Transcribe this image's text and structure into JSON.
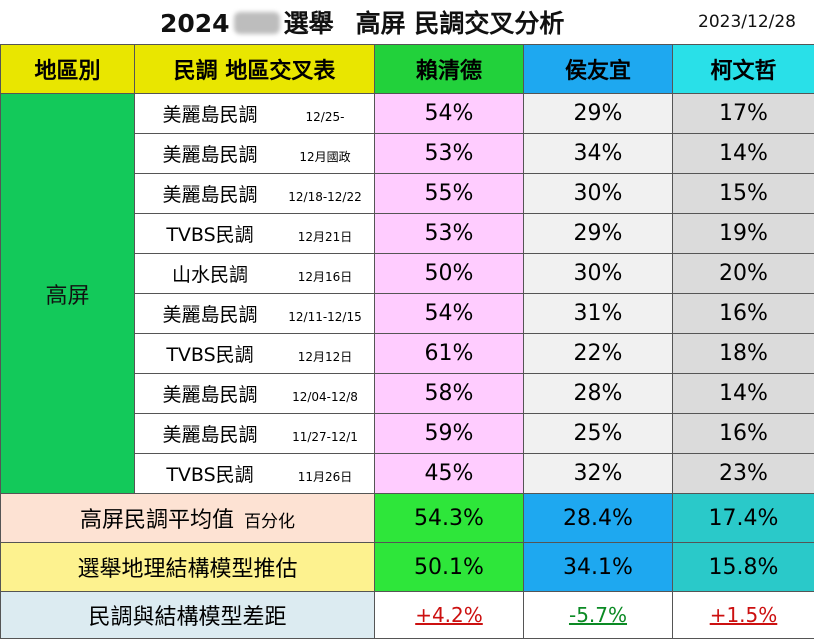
{
  "title": {
    "year": "2024",
    "election": "選舉",
    "county_title": "高屏",
    "subtitle": "民調交叉分析",
    "date": "2023/12/28"
  },
  "headers": {
    "region": "地區別",
    "poll": "民調 地區交叉表",
    "lai": "賴清德",
    "hou": "侯友宜",
    "ko": "柯文哲"
  },
  "region": "高屏",
  "rows": [
    {
      "poll": "美麗島民調",
      "date": "12/25-",
      "lai": "54%",
      "hou": "29%",
      "ko": "17%"
    },
    {
      "poll": "美麗島民調",
      "date": "12月國政",
      "lai": "53%",
      "hou": "34%",
      "ko": "14%"
    },
    {
      "poll": "美麗島民調",
      "date": "12/18-12/22",
      "lai": "55%",
      "hou": "30%",
      "ko": "15%"
    },
    {
      "poll": "TVBS民調",
      "date": "12月21日",
      "lai": "53%",
      "hou": "29%",
      "ko": "19%"
    },
    {
      "poll": "山水民調",
      "date": "12月16日",
      "lai": "50%",
      "hou": "30%",
      "ko": "20%"
    },
    {
      "poll": "美麗島民調",
      "date": "12/11-12/15",
      "lai": "54%",
      "hou": "31%",
      "ko": "16%"
    },
    {
      "poll": "TVBS民調",
      "date": "12月12日",
      "lai": "61%",
      "hou": "22%",
      "ko": "18%"
    },
    {
      "poll": "美麗島民調",
      "date": "12/04-12/8",
      "lai": "58%",
      "hou": "28%",
      "ko": "14%"
    },
    {
      "poll": "美麗島民調",
      "date": "11/27-12/1",
      "lai": "59%",
      "hou": "25%",
      "ko": "16%"
    },
    {
      "poll": "TVBS民調",
      "date": "11月26日",
      "lai": "45%",
      "hou": "32%",
      "ko": "23%"
    }
  ],
  "summary": {
    "average": {
      "label": "高屏民調平均值",
      "unit": "百分化",
      "lai": "54.3%",
      "hou": "28.4%",
      "ko": "17.4%"
    },
    "model": {
      "label": "選舉地理結構模型推估",
      "lai": "50.1%",
      "hou": "34.1%",
      "ko": "15.8%"
    },
    "diff": {
      "label": "民調與結構模型差距",
      "lai": "+4.2%",
      "hou": "-5.7%",
      "ko": "+1.5%"
    }
  }
}
